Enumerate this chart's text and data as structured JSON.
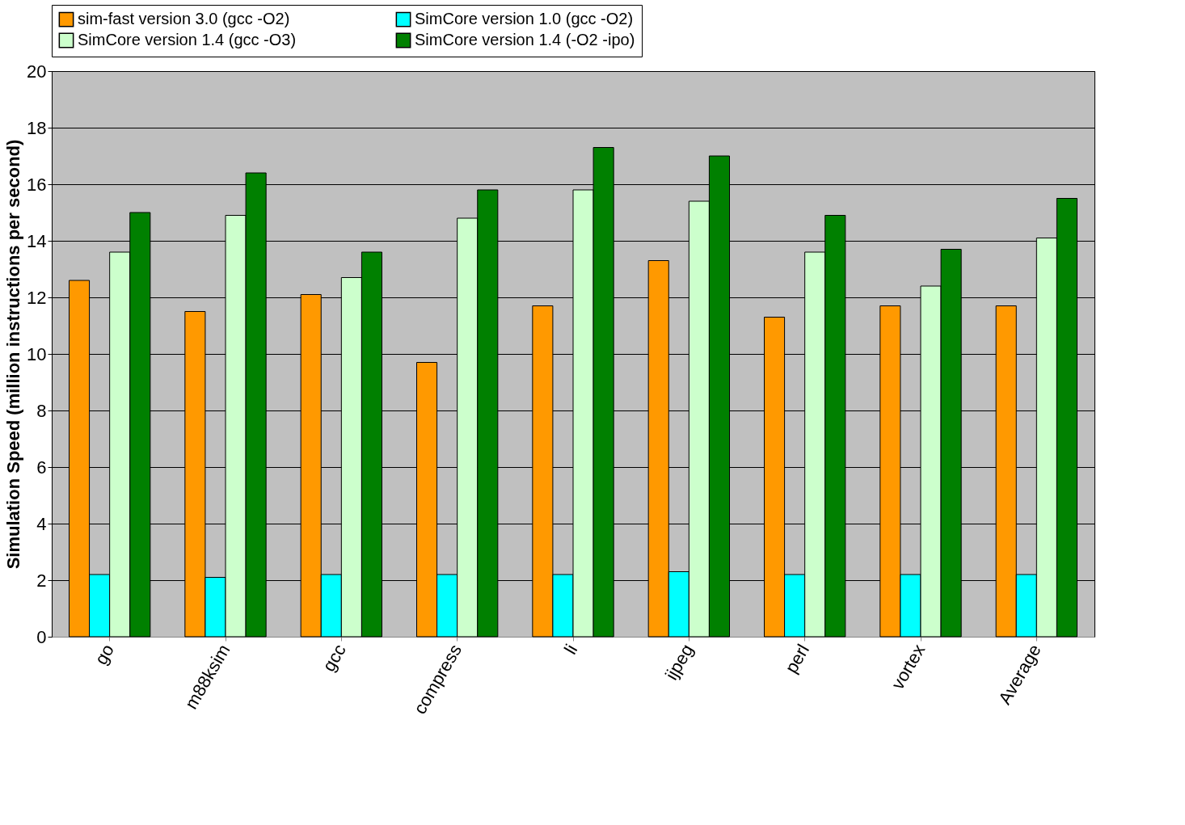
{
  "chart_data": {
    "type": "bar",
    "ylabel": "Simulation Speed (million instructions per second)",
    "categories": [
      "go",
      "m88ksim",
      "gcc",
      "compress",
      "li",
      "ijpeg",
      "perl",
      "vortex",
      "Average"
    ],
    "series": [
      {
        "name": "sim-fast version 3.0 (gcc -O2)",
        "color": "#ff9900",
        "values": [
          12.6,
          11.5,
          12.1,
          9.7,
          11.7,
          13.3,
          11.3,
          11.7,
          11.7
        ]
      },
      {
        "name": "SimCore version 1.0 (gcc -O2)",
        "color": "#00ffff",
        "values": [
          2.2,
          2.1,
          2.2,
          2.2,
          2.2,
          2.3,
          2.2,
          2.2,
          2.2
        ]
      },
      {
        "name": "SimCore version 1.4 (gcc -O3)",
        "color": "#ccffcc",
        "values": [
          13.6,
          14.9,
          12.7,
          14.8,
          15.8,
          15.4,
          13.6,
          12.4,
          14.1
        ]
      },
      {
        "name": "SimCore version 1.4 (-O2 -ipo)",
        "color": "#008000",
        "values": [
          15.0,
          16.4,
          13.6,
          15.8,
          17.3,
          17.0,
          14.9,
          13.7,
          15.5
        ]
      }
    ],
    "ylim": [
      0,
      20
    ],
    "yticks": [
      0,
      2,
      4,
      6,
      8,
      10,
      12,
      14,
      16,
      18,
      20
    ],
    "grid": "y",
    "legend": "top"
  }
}
